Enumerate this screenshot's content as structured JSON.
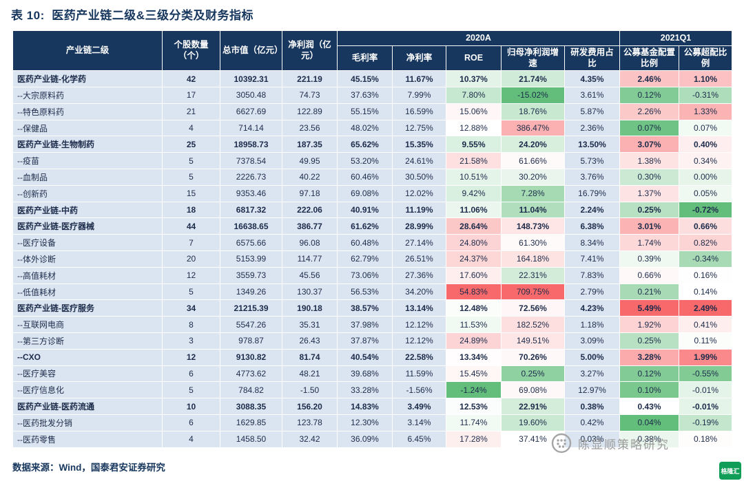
{
  "title": "表 10:  医药产业链二级&三级分类及财务指标",
  "source_note": "数据来源：Wind，国泰君安证券研究",
  "watermark": {
    "text": "陈显顺策略研究"
  },
  "corner_logo_text": "格隆汇",
  "icons": {
    "watermark_logo": "dotted-circle-logo",
    "corner_logo": "gelonghui-green-logo"
  },
  "colors": {
    "header_bg": "#17375e",
    "header_text": "#ffffff",
    "body_bg": "#dbe5f1",
    "body_text": "#1c2b4a",
    "heat_low": "#63be7b",
    "heat_mid": "#ffffff",
    "heat_high": "#f8696b",
    "title_text": "#17375e",
    "watermark_text": "#9b9b9b",
    "corner_logo_green": "#0f9d58"
  },
  "table": {
    "groups": [
      {
        "label": "2020A",
        "span": 5
      },
      {
        "label": "2021Q1",
        "span": 2
      }
    ],
    "columns": [
      "产业链二级",
      "个股数量（个）",
      "总市值（亿元）",
      "净利润（亿元）",
      "毛利率",
      "净利率",
      "ROE",
      "归母净利润增速",
      "研发费用占比",
      "公募基金配置比例",
      "公募超配比例"
    ],
    "heatmap_cells": [
      5,
      6,
      8,
      9
    ],
    "rows": [
      {
        "name": "医药产业链-化学药",
        "bold": true,
        "cells": [
          "42",
          "10392.31",
          "221.19",
          "45.15%",
          "11.67%",
          "10.37%",
          "21.74%",
          "4.35%",
          "2.46%",
          "1.10%"
        ]
      },
      {
        "name": "--大宗原料药",
        "bold": false,
        "cells": [
          "17",
          "3050.48",
          "74.73",
          "37.63%",
          "7.99%",
          "7.80%",
          "-15.02%",
          "3.61%",
          "0.12%",
          "-0.31%"
        ]
      },
      {
        "name": "--特色原料药",
        "bold": false,
        "cells": [
          "21",
          "6627.69",
          "122.89",
          "55.15%",
          "16.59%",
          "15.06%",
          "18.76%",
          "5.87%",
          "2.26%",
          "1.33%"
        ]
      },
      {
        "name": "--保健品",
        "bold": false,
        "cells": [
          "4",
          "714.14",
          "23.56",
          "48.02%",
          "12.75%",
          "12.88%",
          "386.47%",
          "2.36%",
          "0.07%",
          "0.07%"
        ]
      },
      {
        "name": "医药产业链-生物制药",
        "bold": true,
        "cells": [
          "25",
          "18958.73",
          "187.35",
          "65.62%",
          "15.35%",
          "9.55%",
          "24.20%",
          "13.50%",
          "3.07%",
          "0.40%"
        ]
      },
      {
        "name": "--疫苗",
        "bold": false,
        "cells": [
          "5",
          "7378.54",
          "49.95",
          "53.20%",
          "24.61%",
          "21.58%",
          "61.66%",
          "5.73%",
          "1.38%",
          "0.34%"
        ]
      },
      {
        "name": "--血制品",
        "bold": false,
        "cells": [
          "5",
          "2226.73",
          "40.22",
          "60.46%",
          "30.50%",
          "10.51%",
          "30.20%",
          "3.76%",
          "0.30%",
          "0.00%"
        ]
      },
      {
        "name": "--创新药",
        "bold": false,
        "cells": [
          "15",
          "9353.46",
          "97.18",
          "69.08%",
          "12.02%",
          "9.42%",
          "7.28%",
          "16.79%",
          "1.37%",
          "0.05%"
        ]
      },
      {
        "name": "医药产业链-中药",
        "bold": true,
        "cells": [
          "18",
          "6817.32",
          "222.06",
          "40.91%",
          "11.19%",
          "11.06%",
          "11.04%",
          "2.24%",
          "0.25%",
          "-0.72%"
        ]
      },
      {
        "name": "医药产业链-医疗器械",
        "bold": true,
        "cells": [
          "44",
          "16638.65",
          "386.77",
          "61.62%",
          "28.99%",
          "28.64%",
          "148.73%",
          "6.38%",
          "3.01%",
          "0.66%"
        ]
      },
      {
        "name": "--医疗设备",
        "bold": false,
        "cells": [
          "7",
          "6575.66",
          "96.08",
          "60.48%",
          "27.14%",
          "24.80%",
          "61.30%",
          "8.34%",
          "1.74%",
          "0.82%"
        ]
      },
      {
        "name": "--体外诊断",
        "bold": false,
        "cells": [
          "20",
          "5153.99",
          "114.77",
          "62.79%",
          "26.51%",
          "24.37%",
          "164.18%",
          "7.41%",
          "0.39%",
          "-0.34%"
        ]
      },
      {
        "name": "--高值耗材",
        "bold": false,
        "cells": [
          "12",
          "3559.73",
          "45.56",
          "73.06%",
          "27.36%",
          "17.60%",
          "22.31%",
          "7.83%",
          "0.66%",
          "0.16%"
        ]
      },
      {
        "name": "--低值耗材",
        "bold": false,
        "cells": [
          "5",
          "1349.26",
          "130.37",
          "56.53%",
          "34.20%",
          "54.83%",
          "709.75%",
          "2.79%",
          "0.21%",
          "0.14%"
        ]
      },
      {
        "name": "医药产业链-医疗服务",
        "bold": true,
        "cells": [
          "34",
          "21215.39",
          "190.18",
          "38.57%",
          "13.14%",
          "12.48%",
          "72.56%",
          "4.23%",
          "5.49%",
          "2.49%"
        ]
      },
      {
        "name": "--互联网电商",
        "bold": false,
        "cells": [
          "8",
          "5547.26",
          "35.31",
          "37.98%",
          "12.12%",
          "11.53%",
          "182.52%",
          "1.18%",
          "1.92%",
          "0.41%"
        ]
      },
      {
        "name": "--第三方诊断",
        "bold": false,
        "cells": [
          "3",
          "978.87",
          "26.43",
          "37.87%",
          "12.12%",
          "24.89%",
          "149.51%",
          "3.09%",
          "0.25%",
          "0.11%"
        ]
      },
      {
        "name": "--CXO",
        "bold": true,
        "cells": [
          "12",
          "9130.82",
          "81.74",
          "40.54%",
          "22.58%",
          "13.34%",
          "70.26%",
          "5.00%",
          "3.28%",
          "1.99%"
        ]
      },
      {
        "name": "--医疗美容",
        "bold": false,
        "cells": [
          "6",
          "4773.62",
          "48.21",
          "39.68%",
          "11.59%",
          "15.45%",
          "0.25%",
          "3.27%",
          "0.12%",
          "-0.55%"
        ]
      },
      {
        "name": "--医疗信息化",
        "bold": false,
        "cells": [
          "5",
          "784.82",
          "-1.50",
          "33.28%",
          "-1.56%",
          "-1.24%",
          "69.08%",
          "12.97%",
          "0.10%",
          "-0.01%"
        ]
      },
      {
        "name": "医药产业链-医药流通",
        "bold": true,
        "cells": [
          "10",
          "3088.35",
          "156.20",
          "14.83%",
          "3.49%",
          "12.53%",
          "22.91%",
          "0.38%",
          "0.43%",
          "-0.01%"
        ]
      },
      {
        "name": "--医药批发分销",
        "bold": false,
        "cells": [
          "6",
          "1629.85",
          "123.78",
          "12.30%",
          "3.14%",
          "11.74%",
          "19.60%",
          "0.42%",
          "0.04%",
          "-0.19%"
        ]
      },
      {
        "name": "--医药零售",
        "bold": false,
        "cells": [
          "4",
          "1458.50",
          "32.42",
          "36.09%",
          "6.45%",
          "17.28%",
          "37.41%",
          "0.03%",
          "0.38%",
          "0.18%"
        ]
      }
    ]
  }
}
